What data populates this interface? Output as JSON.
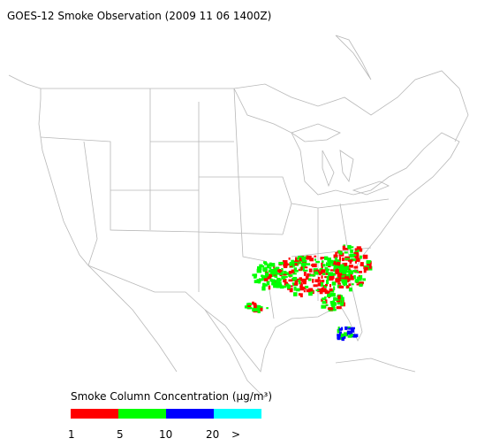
{
  "header": {
    "title": "GOES-12 Smoke Observation (2009 11 06  1400Z)"
  },
  "legend": {
    "title": "Smoke Column Concentration (μg/m³)",
    "bins": [
      {
        "color": "#ff0000"
      },
      {
        "color": "#00ff00"
      },
      {
        "color": "#0000ff"
      },
      {
        "color": "#00ffff"
      }
    ],
    "labels": [
      "1",
      "5",
      "10",
      "20",
      ">"
    ]
  }
}
